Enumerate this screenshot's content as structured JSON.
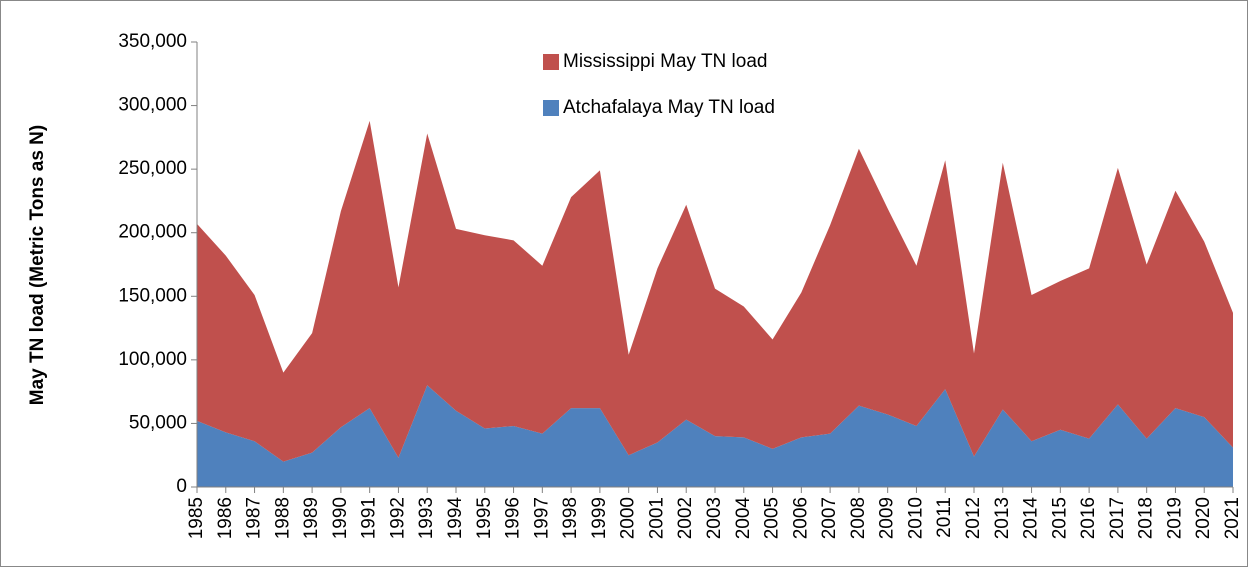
{
  "chart_data": {
    "type": "stacked_area",
    "y_label": "May TN load (Metric Tons as N)",
    "categories": [
      "1985",
      "1986",
      "1987",
      "1988",
      "1989",
      "1990",
      "1991",
      "1992",
      "1993",
      "1994",
      "1995",
      "1996",
      "1997",
      "1998",
      "1999",
      "2000",
      "2001",
      "2002",
      "2003",
      "2004",
      "2005",
      "2006",
      "2007",
      "2008",
      "2009",
      "2010",
      "2011",
      "2012",
      "2013",
      "2014",
      "2015",
      "2016",
      "2017",
      "2018",
      "2019",
      "2020",
      "2021"
    ],
    "series": [
      {
        "name": "Atchafalaya May TN load",
        "color": "#4f81bd",
        "values": [
          52000,
          43000,
          36000,
          20000,
          27000,
          47000,
          62000,
          23000,
          80000,
          60000,
          46000,
          48000,
          42000,
          62000,
          62000,
          25000,
          35000,
          53000,
          40000,
          39000,
          30000,
          39000,
          42000,
          64000,
          57000,
          48000,
          77000,
          24000,
          61000,
          36000,
          45000,
          38000,
          65000,
          38000,
          62000,
          55000,
          31000
        ]
      },
      {
        "name": "Mississippi May TN load",
        "color": "#c0504d",
        "values": [
          155000,
          139000,
          115000,
          70000,
          94000,
          170000,
          226000,
          134000,
          198000,
          143000,
          152000,
          146000,
          132000,
          166000,
          187000,
          79000,
          137000,
          169000,
          116000,
          103000,
          86000,
          114000,
          164000,
          202000,
          162000,
          126000,
          180000,
          81000,
          194000,
          115000,
          117000,
          134000,
          186000,
          137000,
          171000,
          138000,
          106000
        ]
      }
    ],
    "ylim": [
      0,
      350000
    ],
    "yticks": [
      0,
      {
        "value": 50000,
        "label": "50,000"
      },
      {
        "value": 100000,
        "label": "100,000"
      },
      {
        "value": 150000,
        "label": "150,000"
      },
      {
        "value": 200000,
        "label": "200,000"
      },
      {
        "value": 250000,
        "label": "250,000"
      },
      {
        "value": 300000,
        "label": "300,000"
      },
      {
        "value": 350000,
        "label": "350,000"
      }
    ],
    "grid": false
  }
}
